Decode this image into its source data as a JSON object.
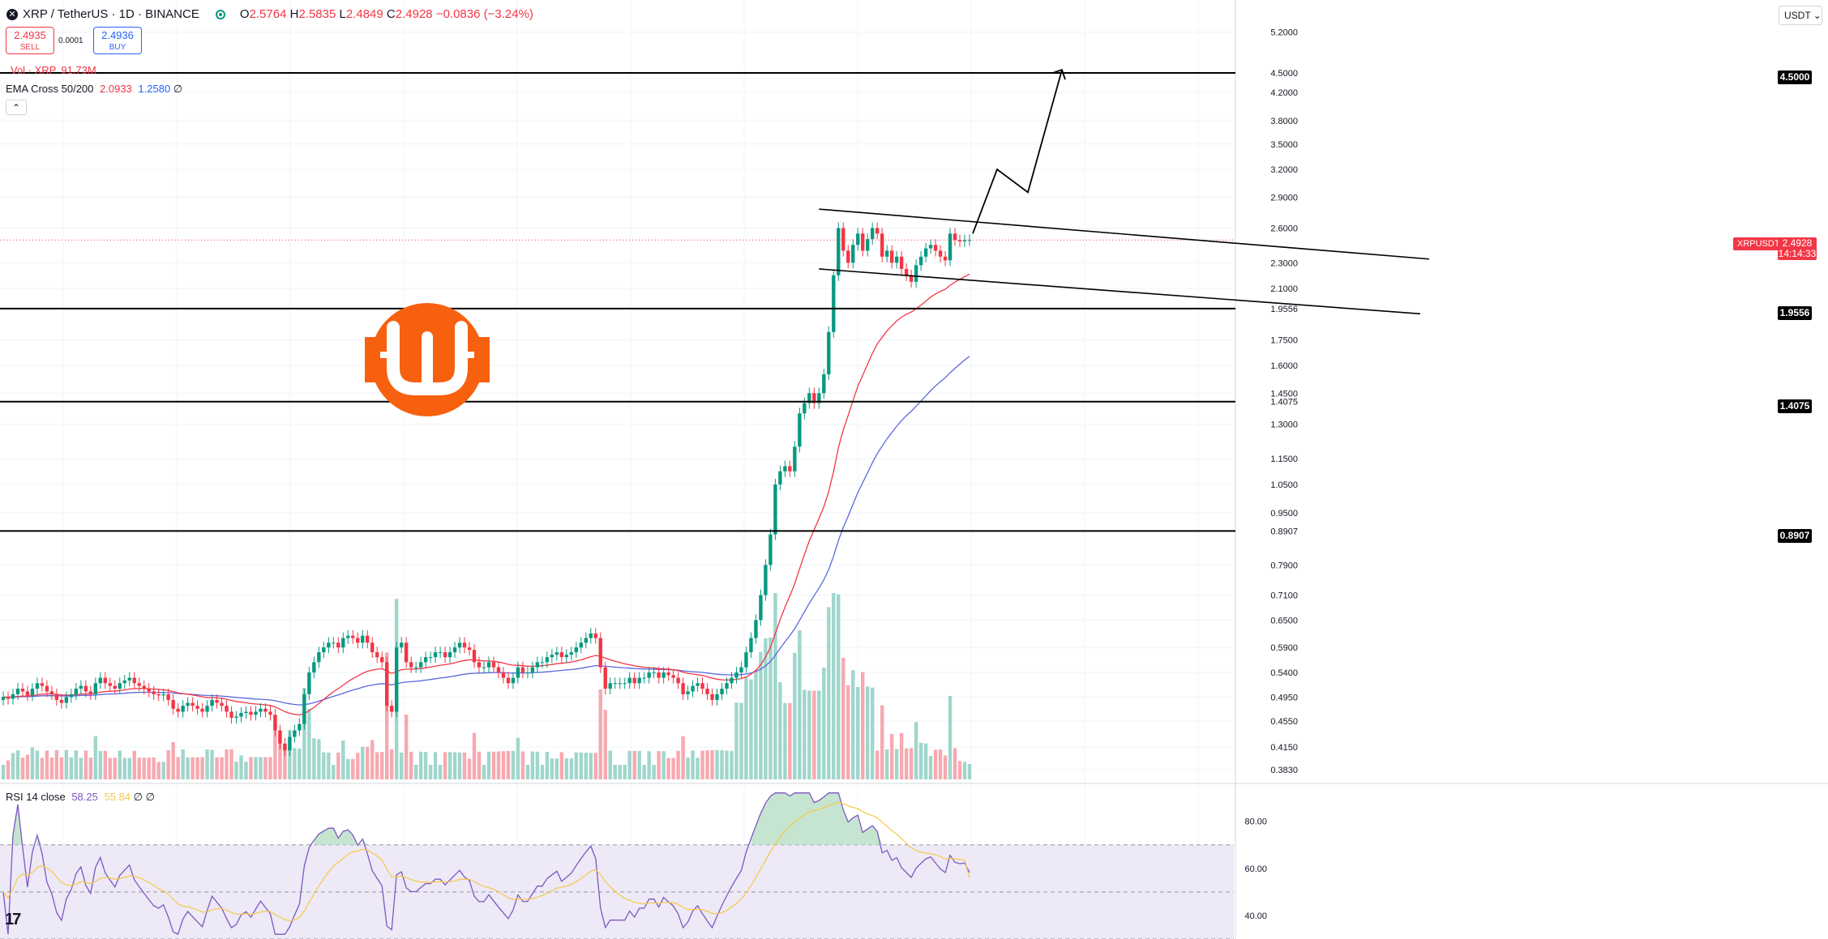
{
  "header": {
    "symbol": "XRP / TetherUS · 1D · BINANCE",
    "open_label": "O",
    "open": "2.5764",
    "high_label": "H",
    "high": "2.5835",
    "low_label": "L",
    "low": "2.4849",
    "close_label": "C",
    "close": "2.4928",
    "change": "−0.0836 (−3.24%)"
  },
  "trade": {
    "sell_price": "2.4935",
    "sell_label": "SELL",
    "spread": "0.0001",
    "buy_price": "2.4936",
    "buy_label": "BUY"
  },
  "indicators": {
    "vol_label": "Vol · XRP",
    "vol_value": "91.73M",
    "ema_label": "EMA Cross 50/200",
    "ema_fast": "2.0933",
    "ema_slow": "1.2580",
    "ema_extra": "∅",
    "rsi_label": "RSI 14 close",
    "rsi_value": "58.25",
    "rsi_ma": "55.84",
    "rsi_extra": "∅ ∅"
  },
  "toolbar": {
    "currency": "USDT ⌄",
    "collapse": "⌃",
    "logo": "17"
  },
  "price_tags": {
    "level_450": "4.5000",
    "level_19556": "1.9556",
    "level_14075": "1.4075",
    "level_08907": "0.8907",
    "symbol_label": "XRPUSDT",
    "last_price": "2.4928",
    "countdown": "14:14:33"
  },
  "colors": {
    "up": "#089981",
    "down": "#f23645",
    "up_vol": "#9fd6cb",
    "down_vol": "#f7a9b0",
    "ema_fast": "#f23645",
    "ema_slow": "#5b68e0",
    "rsi_line": "#7e57c2",
    "rsi_ma": "#f7c948",
    "logo": "#f7600e"
  },
  "chart_data": {
    "type": "candlestick",
    "interval": "1D",
    "price_axis": {
      "scale": "log",
      "tick_labels": [
        "5.2000",
        "4.5000",
        "4.2000",
        "3.8000",
        "3.5000",
        "3.2000",
        "2.9000",
        "2.6000",
        "2.3000",
        "2.1000",
        "1.9556",
        "1.7500",
        "1.6000",
        "1.4500",
        "1.4075",
        "1.3000",
        "1.1500",
        "1.0500",
        "0.9500",
        "0.8907",
        "0.7900",
        "0.7100",
        "0.6500",
        "0.5900",
        "0.5400",
        "0.4950",
        "0.4550",
        "0.4150",
        "0.3830"
      ],
      "range": [
        0.37,
        5.5
      ]
    },
    "horizontal_levels": [
      4.5,
      1.9556,
      1.4075,
      0.8907
    ],
    "last_price": 2.4928,
    "candle_count": 200,
    "price_closes": [
      0.495,
      0.492,
      0.5,
      0.51,
      0.505,
      0.498,
      0.51,
      0.52,
      0.515,
      0.505,
      0.5,
      0.49,
      0.485,
      0.495,
      0.5,
      0.51,
      0.515,
      0.505,
      0.5,
      0.52,
      0.53,
      0.52,
      0.515,
      0.51,
      0.52,
      0.525,
      0.53,
      0.52,
      0.515,
      0.51,
      0.505,
      0.5,
      0.498,
      0.5,
      0.49,
      0.475,
      0.47,
      0.48,
      0.485,
      0.48,
      0.475,
      0.47,
      0.48,
      0.49,
      0.485,
      0.48,
      0.47,
      0.46,
      0.462,
      0.468,
      0.47,
      0.465,
      0.47,
      0.475,
      0.47,
      0.465,
      0.44,
      0.42,
      0.41,
      0.43,
      0.44,
      0.45,
      0.5,
      0.54,
      0.56,
      0.58,
      0.59,
      0.6,
      0.6,
      0.59,
      0.61,
      0.615,
      0.61,
      0.6,
      0.615,
      0.6,
      0.58,
      0.57,
      0.56,
      0.48,
      0.47,
      0.59,
      0.6,
      0.56,
      0.55,
      0.55,
      0.56,
      0.57,
      0.57,
      0.58,
      0.58,
      0.57,
      0.58,
      0.59,
      0.6,
      0.59,
      0.585,
      0.56,
      0.55,
      0.55,
      0.56,
      0.55,
      0.54,
      0.53,
      0.52,
      0.53,
      0.55,
      0.54,
      0.54,
      0.55,
      0.56,
      0.56,
      0.57,
      0.575,
      0.58,
      0.57,
      0.575,
      0.58,
      0.59,
      0.6,
      0.61,
      0.62,
      0.61,
      0.55,
      0.51,
      0.52,
      0.52,
      0.52,
      0.52,
      0.53,
      0.52,
      0.53,
      0.53,
      0.54,
      0.54,
      0.53,
      0.54,
      0.535,
      0.53,
      0.52,
      0.5,
      0.505,
      0.515,
      0.52,
      0.51,
      0.5,
      0.49,
      0.5,
      0.51,
      0.52,
      0.53,
      0.54,
      0.55,
      0.58,
      0.61,
      0.65,
      0.71,
      0.79,
      0.88,
      1.05,
      1.1,
      1.12,
      1.1,
      1.2,
      1.35,
      1.4,
      1.45,
      1.4,
      1.45,
      1.55,
      1.8,
      2.2,
      2.6,
      2.4,
      2.3,
      2.45,
      2.55,
      2.4,
      2.5,
      2.6,
      2.55,
      2.35,
      2.4,
      2.3,
      2.35,
      2.25,
      2.2,
      2.15,
      2.28,
      2.35,
      2.42,
      2.45,
      2.4,
      2.35,
      2.32,
      2.55,
      2.4928,
      2.48,
      2.49,
      2.4928
    ],
    "rsi_axis": {
      "tick_labels": [
        "80.00",
        "60.00",
        "40.00"
      ],
      "range": [
        30,
        95
      ],
      "bands": [
        70,
        50,
        30
      ]
    },
    "rsi_value": 58.25,
    "rsi_ma_value": 55.84,
    "projection_path": [
      [
        1200,
        2.55
      ],
      [
        1230,
        3.2
      ],
      [
        1268,
        2.95
      ],
      [
        1310,
        4.55
      ]
    ]
  }
}
